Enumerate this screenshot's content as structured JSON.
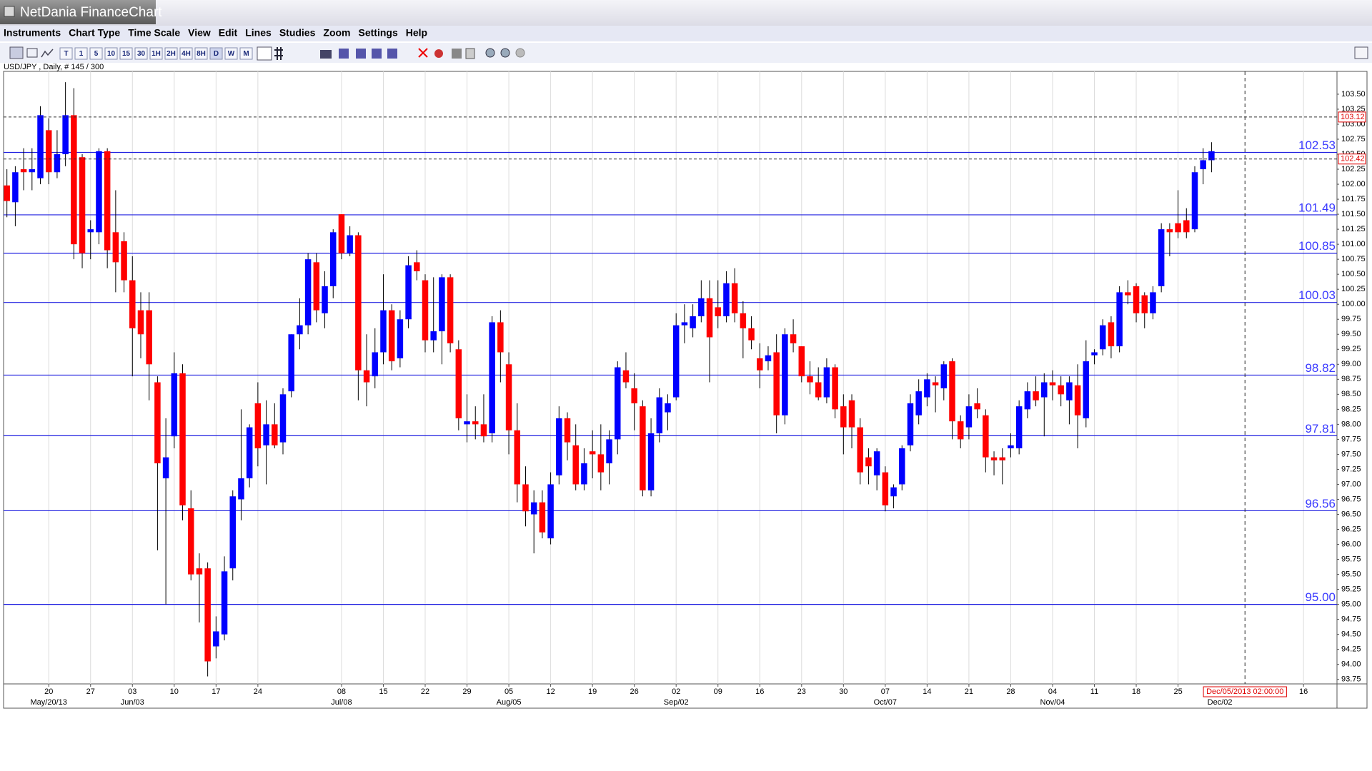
{
  "app": {
    "title": "NetDania FinanceChart",
    "menu": [
      "Instruments",
      "Chart Type",
      "Time Scale",
      "View",
      "Edit",
      "Lines",
      "Studies",
      "Zoom",
      "Settings",
      "Help"
    ],
    "toolbar": [
      "T",
      "1",
      "5",
      "10",
      "15",
      "30",
      "1H",
      "2H",
      "4H",
      "8H",
      "D",
      "W",
      "M"
    ]
  },
  "chart_data": {
    "type": "candlestick",
    "subtitle": "USD/JPY , Daily, # 145 / 300",
    "up_color": "#0000ff",
    "down_color": "#ff0000",
    "grid": "x",
    "xlim": [
      -0.4,
      159
    ],
    "ylim": [
      93.675,
      103.88
    ],
    "open": [
      101.98,
      101.7,
      102.25,
      102.2,
      102.1,
      102.9,
      102.2,
      102.5,
      103.15,
      102.45,
      101.2,
      101.2,
      102.55,
      101.2,
      101.05,
      100.4,
      99.9,
      99.9,
      98.7,
      97.1,
      97.8,
      98.85,
      96.6,
      95.6,
      95.6,
      94.3,
      94.5,
      95.6,
      96.75,
      97.1,
      98.35,
      97.65,
      98.0,
      97.7,
      98.55,
      99.5,
      99.65,
      100.7,
      99.85,
      100.3,
      101.5,
      100.85,
      101.15,
      98.9,
      98.8,
      99.2,
      99.9,
      99.1,
      99.75,
      100.7,
      100.4,
      99.4,
      99.55,
      100.45,
      99.25,
      98.0,
      98.05,
      98.0,
      97.85,
      99.7,
      99.0,
      97.9,
      97.0,
      96.5,
      96.7,
      96.1,
      97.15,
      98.1,
      97.65,
      97.0,
      97.55,
      97.5,
      97.35,
      97.75,
      98.9,
      98.6,
      98.3,
      96.9,
      97.85,
      98.2,
      98.45,
      99.65,
      99.6,
      99.8,
      100.1,
      99.95,
      99.8,
      100.35,
      99.85,
      99.6,
      99.1,
      99.05,
      99.2,
      98.15,
      99.5,
      99.3,
      98.8,
      98.7,
      98.45,
      98.95,
      98.3,
      98.4,
      97.95,
      97.45,
      97.15,
      97.2,
      96.8,
      97.0,
      97.65,
      98.15,
      98.45,
      98.7,
      98.6,
      99.05,
      98.05,
      97.95,
      98.35,
      98.15,
      97.45,
      97.45,
      97.6,
      97.6,
      98.25,
      98.55,
      98.45,
      98.7,
      98.65,
      98.4,
      98.65,
      98.1,
      99.15,
      99.25,
      99.7,
      99.3,
      100.2,
      100.3,
      100.15,
      99.85,
      100.3,
      101.25,
      101.35,
      101.4,
      101.25,
      102.25,
      102.4
    ],
    "high": [
      102.25,
      102.3,
      102.6,
      102.6,
      103.3,
      103.1,
      102.9,
      103.7,
      103.6,
      102.5,
      101.4,
      102.6,
      102.6,
      101.9,
      101.2,
      100.8,
      100.2,
      100.2,
      98.8,
      98.1,
      99.2,
      99.0,
      96.9,
      95.85,
      95.7,
      94.8,
      95.8,
      96.9,
      98.25,
      98.0,
      98.7,
      98.4,
      98.35,
      98.6,
      99.5,
      100.1,
      100.85,
      100.85,
      100.55,
      101.25,
      101.5,
      101.3,
      101.2,
      99.5,
      99.6,
      100.5,
      100.0,
      99.9,
      100.8,
      100.9,
      100.5,
      100.45,
      100.5,
      100.5,
      99.4,
      98.5,
      98.3,
      98.5,
      99.8,
      99.9,
      99.2,
      98.35,
      97.3,
      96.9,
      96.9,
      97.2,
      98.3,
      98.2,
      98.0,
      97.6,
      97.9,
      98.0,
      97.9,
      99.05,
      99.2,
      98.85,
      98.4,
      98.1,
      98.6,
      98.5,
      99.85,
      100.0,
      100.0,
      100.4,
      100.4,
      100.4,
      100.55,
      100.6,
      100.05,
      99.8,
      99.35,
      99.3,
      99.5,
      99.6,
      99.75,
      99.3,
      99.05,
      98.95,
      99.1,
      99.0,
      98.5,
      98.5,
      98.1,
      97.6,
      97.6,
      97.3,
      97.0,
      97.65,
      98.5,
      98.75,
      98.85,
      98.8,
      99.05,
      99.1,
      98.15,
      98.5,
      98.6,
      98.25,
      97.55,
      97.6,
      97.85,
      98.4,
      98.7,
      98.8,
      98.85,
      98.9,
      98.8,
      98.8,
      99.0,
      99.4,
      99.25,
      99.75,
      99.8,
      100.3,
      100.4,
      100.35,
      100.2,
      100.3,
      101.35,
      101.35,
      101.9,
      101.6,
      102.3,
      102.6,
      102.7
    ],
    "low": [
      101.45,
      101.3,
      101.9,
      101.9,
      102.0,
      102.0,
      102.1,
      102.3,
      100.75,
      100.6,
      100.75,
      101.0,
      100.6,
      100.2,
      100.2,
      98.8,
      99.1,
      98.4,
      95.9,
      95.0,
      97.6,
      96.4,
      95.4,
      94.7,
      93.8,
      94.1,
      94.4,
      95.4,
      96.4,
      96.95,
      97.3,
      97.0,
      97.6,
      97.5,
      98.45,
      99.25,
      99.5,
      99.7,
      99.6,
      100.1,
      100.75,
      100.8,
      98.4,
      98.3,
      98.6,
      99.0,
      98.9,
      98.95,
      99.6,
      100.4,
      99.2,
      99.2,
      99.0,
      99.2,
      97.9,
      97.7,
      97.75,
      97.7,
      97.7,
      98.7,
      97.5,
      96.7,
      96.3,
      95.85,
      96.1,
      96.0,
      97.0,
      97.4,
      96.9,
      96.9,
      97.1,
      96.9,
      97.0,
      97.5,
      98.6,
      97.9,
      96.8,
      96.8,
      97.7,
      97.9,
      98.4,
      99.35,
      99.45,
      99.7,
      98.7,
      99.6,
      99.7,
      99.7,
      99.1,
      99.25,
      98.6,
      98.9,
      97.85,
      98.0,
      99.2,
      98.7,
      98.5,
      98.4,
      98.35,
      98.1,
      97.5,
      97.6,
      97.0,
      97.0,
      96.9,
      96.55,
      96.6,
      96.9,
      97.55,
      98.0,
      98.3,
      98.2,
      98.4,
      97.75,
      97.6,
      97.75,
      98.1,
      97.2,
      97.15,
      97.0,
      97.45,
      97.5,
      98.1,
      98.3,
      97.8,
      98.4,
      98.3,
      98.0,
      97.6,
      97.95,
      99.0,
      99.15,
      99.1,
      99.2,
      100.0,
      99.7,
      99.6,
      99.75,
      100.2,
      100.8,
      101.1,
      101.1,
      101.2,
      102.0,
      102.2
    ],
    "close": [
      101.72,
      102.2,
      102.2,
      102.25,
      103.15,
      102.2,
      102.5,
      103.15,
      101.0,
      100.85,
      101.25,
      102.55,
      100.9,
      100.7,
      100.4,
      99.6,
      99.5,
      99.0,
      97.35,
      97.45,
      98.85,
      96.65,
      95.5,
      95.5,
      94.05,
      94.55,
      95.55,
      96.8,
      97.1,
      97.95,
      97.6,
      98.0,
      97.65,
      98.5,
      99.5,
      99.65,
      100.75,
      99.9,
      100.3,
      101.2,
      100.85,
      101.15,
      98.9,
      98.7,
      99.2,
      99.9,
      99.05,
      99.75,
      100.65,
      100.55,
      99.4,
      99.55,
      100.45,
      99.35,
      98.1,
      98.05,
      98.0,
      97.8,
      99.7,
      99.2,
      97.9,
      97.0,
      96.55,
      96.7,
      96.2,
      97.0,
      98.1,
      97.7,
      97.0,
      97.35,
      97.5,
      97.2,
      97.75,
      98.95,
      98.7,
      98.35,
      96.9,
      97.85,
      98.45,
      98.35,
      99.65,
      99.7,
      99.8,
      100.1,
      99.45,
      99.8,
      100.35,
      99.85,
      99.6,
      99.4,
      98.9,
      99.15,
      98.15,
      99.5,
      99.35,
      98.8,
      98.7,
      98.45,
      98.95,
      98.25,
      97.95,
      97.95,
      97.2,
      97.3,
      97.55,
      96.65,
      96.95,
      97.6,
      98.35,
      98.55,
      98.75,
      98.65,
      99.0,
      98.05,
      97.75,
      98.3,
      98.25,
      97.45,
      97.4,
      97.4,
      97.65,
      98.3,
      98.55,
      98.4,
      98.7,
      98.65,
      98.5,
      98.7,
      98.15,
      99.05,
      99.2,
      99.65,
      99.3,
      100.2,
      100.15,
      99.85,
      99.85,
      100.2,
      101.25,
      101.2,
      101.2,
      101.2,
      102.2,
      102.4,
      102.55
    ],
    "yticks": [
      93.75,
      {
        "value": 94,
        "label": "94.00"
      },
      94.25,
      {
        "value": 94.5,
        "label": "94.50"
      },
      94.75,
      {
        "value": 95,
        "label": "95.00"
      },
      95.25,
      {
        "value": 95.5,
        "label": "95.50"
      },
      95.75,
      {
        "value": 96,
        "label": "96.00"
      },
      96.25,
      {
        "value": 96.5,
        "label": "96.50"
      },
      96.75,
      {
        "value": 97,
        "label": "97.00"
      },
      97.25,
      {
        "value": 97.5,
        "label": "97.50"
      },
      97.75,
      {
        "value": 98,
        "label": "98.00"
      },
      98.25,
      {
        "value": 98.5,
        "label": "98.50"
      },
      98.75,
      {
        "value": 99,
        "label": "99.00"
      },
      99.25,
      {
        "value": 99.5,
        "label": "99.50"
      },
      99.75,
      {
        "value": 100,
        "label": "100.00"
      },
      100.25,
      {
        "value": 100.5,
        "label": "100.50"
      },
      100.75,
      {
        "value": 101,
        "label": "101.00"
      },
      101.25,
      {
        "value": 101.5,
        "label": "101.50"
      },
      101.75,
      {
        "value": 102,
        "label": "102.00"
      },
      102.25,
      {
        "value": 102.5,
        "label": "102.50"
      },
      102.75,
      {
        "value": 103,
        "label": "103.00"
      },
      103.25,
      {
        "value": 103.5,
        "label": "103.50"
      }
    ],
    "xticks": [
      {
        "value": 5,
        "label": "20"
      },
      {
        "value": 10,
        "label": "27"
      },
      {
        "value": 15,
        "label": "03"
      },
      {
        "value": 20,
        "label": "10"
      },
      {
        "value": 25,
        "label": "17"
      },
      {
        "value": 30,
        "label": "24"
      },
      {
        "value": 40,
        "label": "08"
      },
      {
        "value": 45,
        "label": "15"
      },
      {
        "value": 50,
        "label": "22"
      },
      {
        "value": 55,
        "label": "29"
      },
      {
        "value": 60,
        "label": "05"
      },
      {
        "value": 65,
        "label": "12"
      },
      {
        "value": 70,
        "label": "19"
      },
      {
        "value": 75,
        "label": "26"
      },
      {
        "value": 80,
        "label": "02"
      },
      {
        "value": 85,
        "label": "09"
      },
      {
        "value": 90,
        "label": "16"
      },
      {
        "value": 95,
        "label": "23"
      },
      {
        "value": 100,
        "label": "30"
      },
      {
        "value": 105,
        "label": "07"
      },
      {
        "value": 110,
        "label": "14"
      },
      {
        "value": 115,
        "label": "21"
      },
      {
        "value": 120,
        "label": "28"
      },
      {
        "value": 125,
        "label": "04"
      },
      {
        "value": 130,
        "label": "11"
      },
      {
        "value": 135,
        "label": "18"
      },
      {
        "value": 140,
        "label": "25"
      },
      {
        "value": 155,
        "label": "16"
      }
    ],
    "xticks2": [
      {
        "value": 5,
        "label": "May/20/13"
      },
      {
        "value": 15,
        "label": "Jun/03"
      },
      {
        "value": 40,
        "label": "Jul/08"
      },
      {
        "value": 60,
        "label": "Aug/05"
      },
      {
        "value": 80,
        "label": "Sep/02"
      },
      {
        "value": 105,
        "label": "Oct/07"
      },
      {
        "value": 125,
        "label": "Nov/04"
      },
      {
        "value": 145,
        "label": "Dec/02"
      }
    ],
    "levels": [
      102.53,
      101.49,
      100.85,
      100.03,
      98.82,
      97.81,
      96.56,
      {
        "value": 95,
        "label": "95.00"
      }
    ],
    "level_color": "#2020e0",
    "price_markers": [
      103.12,
      102.42
    ],
    "crosshair": {
      "value": 148,
      "label": "Dec/05/2013 02:00:00"
    }
  }
}
